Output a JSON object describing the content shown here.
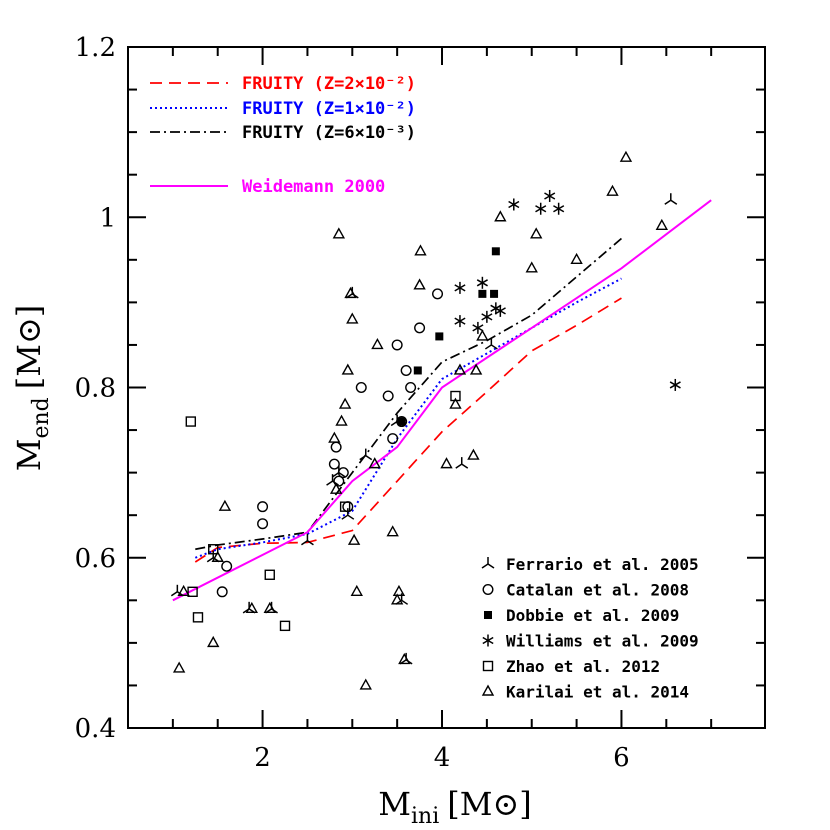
{
  "chart_data": {
    "type": "scatter",
    "xlabel": "M",
    "xlabel_sub": "ini",
    "xlabel_unit": "[M⊙]",
    "ylabel": "M",
    "ylabel_sub": "end",
    "ylabel_unit": "[M⊙]",
    "xlim": [
      0.5,
      7.6
    ],
    "ylim": [
      0.4,
      1.2
    ],
    "xticks": [
      2,
      4,
      6
    ],
    "xtick_labels": [
      "2",
      "4",
      "6"
    ],
    "yticks": [
      0.4,
      0.6,
      0.8,
      1.0,
      1.2
    ],
    "ytick_labels": [
      "0.4",
      "0.6",
      "0.8",
      "1",
      "1.2"
    ],
    "grid": false,
    "legend_lines_position": "top-left",
    "legend_points_position": "bottom-right",
    "lines": [
      {
        "label": "FRUITY (Z=2×10⁻²)",
        "color": "#ff0000",
        "dash": "dashed",
        "x": [
          1.25,
          1.5,
          2.0,
          2.5,
          3.0,
          3.5,
          4.0,
          4.5,
          5.0,
          5.5,
          6.0
        ],
        "y": [
          0.595,
          0.612,
          0.617,
          0.618,
          0.632,
          0.69,
          0.748,
          0.795,
          0.843,
          0.873,
          0.905
        ]
      },
      {
        "label": "FRUITY (Z=1×10⁻²)",
        "color": "#0000ff",
        "dash": "dotted",
        "x": [
          1.25,
          1.5,
          2.0,
          2.5,
          3.0,
          3.5,
          4.0,
          4.5,
          5.0,
          5.5,
          6.0
        ],
        "y": [
          0.6,
          0.61,
          0.618,
          0.628,
          0.655,
          0.74,
          0.81,
          0.84,
          0.87,
          0.9,
          0.928
        ]
      },
      {
        "label": "FRUITY (Z=6×10⁻³)",
        "color": "#000000",
        "dash": "dashdot",
        "x": [
          1.25,
          1.5,
          2.0,
          2.5,
          3.0,
          3.5,
          4.0,
          4.5,
          5.0,
          5.5,
          6.0
        ],
        "y": [
          0.61,
          0.615,
          0.622,
          0.63,
          0.7,
          0.77,
          0.83,
          0.855,
          0.885,
          0.93,
          0.975
        ]
      },
      {
        "label": "Weidemann 2000",
        "color": "#ff00ff",
        "dash": "solid",
        "x": [
          1.0,
          2.5,
          3.0,
          3.5,
          4.0,
          5.0,
          6.0,
          7.0
        ],
        "y": [
          0.55,
          0.63,
          0.69,
          0.73,
          0.8,
          0.87,
          0.94,
          1.02
        ]
      }
    ],
    "series": [
      {
        "name": "Ferrario et al. 2005",
        "marker": "tripod",
        "x": [
          1.05,
          1.45,
          1.85,
          2.1,
          2.5,
          2.78,
          2.85,
          2.95,
          3.0,
          3.15,
          3.5,
          3.55,
          3.6,
          4.22,
          4.55,
          6.55
        ],
        "y": [
          0.56,
          0.6,
          0.54,
          0.54,
          0.62,
          0.69,
          0.7,
          0.65,
          0.91,
          0.72,
          0.76,
          0.55,
          0.48,
          0.71,
          0.85,
          1.02
        ]
      },
      {
        "name": "Catalan et al. 2008",
        "marker": "circle",
        "x": [
          1.6,
          1.55,
          2.0,
          2.0,
          2.8,
          2.82,
          2.85,
          2.9,
          2.95,
          3.1,
          3.4,
          3.45,
          3.5,
          3.55,
          3.6,
          3.65,
          3.75,
          3.95
        ],
        "y": [
          0.59,
          0.56,
          0.66,
          0.64,
          0.71,
          0.73,
          0.69,
          0.7,
          0.66,
          0.8,
          0.79,
          0.74,
          0.85,
          0.76,
          0.82,
          0.8,
          0.87,
          0.91
        ]
      },
      {
        "name": "Dobbie et al. 2009",
        "marker": "square-filled",
        "x": [
          3.55,
          3.73,
          3.97,
          4.45,
          4.58,
          4.6
        ],
        "y": [
          0.76,
          0.82,
          0.86,
          0.91,
          0.91,
          0.96
        ]
      },
      {
        "name": "Williams et al. 2009",
        "marker": "asterisk",
        "x": [
          4.2,
          4.2,
          4.4,
          4.45,
          4.5,
          4.6,
          4.65,
          4.8,
          5.1,
          5.2,
          5.3,
          6.6
        ],
        "y": [
          0.917,
          0.878,
          0.87,
          0.923,
          0.883,
          0.893,
          0.89,
          1.015,
          1.01,
          1.025,
          1.01,
          0.803
        ]
      },
      {
        "name": "Zhao et al. 2012",
        "marker": "square-open",
        "x": [
          1.2,
          1.22,
          1.28,
          1.45,
          2.08,
          2.25,
          2.92,
          4.15
        ],
        "y": [
          0.76,
          0.56,
          0.53,
          0.61,
          0.58,
          0.52,
          0.66,
          0.79
        ]
      },
      {
        "name": "Karilai et al. 2014",
        "marker": "triangle-open",
        "x": [
          1.07,
          1.12,
          1.45,
          1.5,
          1.58,
          1.88,
          2.08,
          2.8,
          2.82,
          2.85,
          2.88,
          2.92,
          2.95,
          2.98,
          3.0,
          3.02,
          3.05,
          3.15,
          3.25,
          3.28,
          3.45,
          3.5,
          3.52,
          3.58,
          3.75,
          3.76,
          4.05,
          4.15,
          4.2,
          4.35,
          4.38,
          4.45,
          4.65,
          5.0,
          5.05,
          5.5,
          5.9,
          6.05,
          6.45
        ],
        "y": [
          0.47,
          0.56,
          0.5,
          0.6,
          0.66,
          0.54,
          0.54,
          0.74,
          0.68,
          0.98,
          0.76,
          0.78,
          0.82,
          0.91,
          0.88,
          0.62,
          0.56,
          0.45,
          0.71,
          0.85,
          0.63,
          0.55,
          0.56,
          0.48,
          0.92,
          0.96,
          0.71,
          0.78,
          0.82,
          0.72,
          0.82,
          0.86,
          1.0,
          0.94,
          0.98,
          0.95,
          1.03,
          1.07,
          0.99
        ]
      }
    ]
  }
}
